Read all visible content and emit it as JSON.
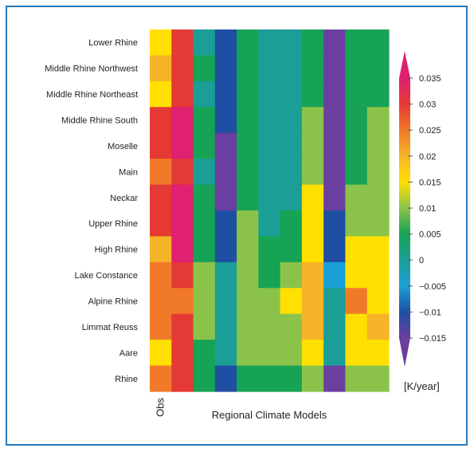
{
  "chart_data": {
    "type": "heatmap",
    "title": "",
    "xlabel": "Regional Climate Models",
    "first_column_label": "Obs",
    "rows": [
      "Lower Rhine",
      "Middle Rhine Northwest",
      "Middle Rhine Northeast",
      "Middle Rhine South",
      "Moselle",
      "Main",
      "Neckar",
      "Upper Rhine",
      "High Rhine",
      "Lake Constance",
      "Alpine Rhine",
      "Limmat Reuss",
      "Aare",
      "Rhine"
    ],
    "n_columns": 11,
    "values": [
      [
        0.02,
        0.03,
        0.003,
        -0.01,
        0.008,
        0.007,
        0.006,
        0.008,
        -0.013,
        0.008,
        0.008
      ],
      [
        0.022,
        0.03,
        0.008,
        -0.01,
        0.008,
        0.007,
        0.006,
        0.008,
        -0.013,
        0.008,
        0.008
      ],
      [
        0.02,
        0.03,
        0.003,
        -0.01,
        0.008,
        0.007,
        0.006,
        0.008,
        -0.013,
        0.008,
        0.008
      ],
      [
        0.03,
        0.035,
        0.008,
        -0.01,
        0.008,
        0.005,
        0.005,
        0.014,
        -0.013,
        0.008,
        0.014
      ],
      [
        0.03,
        0.035,
        0.008,
        -0.014,
        0.008,
        0.005,
        0.005,
        0.014,
        -0.013,
        0.008,
        0.014
      ],
      [
        0.025,
        0.03,
        0.003,
        -0.014,
        0.008,
        0.0,
        0.005,
        0.014,
        -0.015,
        0.008,
        0.014
      ],
      [
        0.03,
        0.035,
        0.008,
        -0.014,
        0.008,
        0.005,
        0.005,
        0.018,
        -0.013,
        0.014,
        0.014
      ],
      [
        0.03,
        0.035,
        0.008,
        -0.01,
        0.014,
        0.005,
        0.008,
        0.018,
        -0.01,
        0.014,
        0.014
      ],
      [
        0.022,
        0.035,
        0.008,
        -0.01,
        0.014,
        0.008,
        0.008,
        0.018,
        -0.01,
        0.02,
        0.02
      ],
      [
        0.025,
        0.03,
        0.014,
        0.0,
        0.014,
        0.008,
        0.014,
        0.022,
        -0.005,
        0.02,
        0.02
      ],
      [
        0.025,
        0.025,
        0.014,
        0.0,
        0.014,
        0.014,
        0.02,
        0.022,
        0.003,
        0.025,
        0.02
      ],
      [
        0.025,
        0.03,
        0.014,
        0.0,
        0.014,
        0.014,
        0.014,
        0.022,
        0.003,
        0.02,
        0.022
      ],
      [
        0.02,
        0.03,
        0.008,
        0.0,
        0.014,
        0.014,
        0.014,
        0.02,
        0.0,
        0.02,
        0.02
      ],
      [
        0.025,
        0.03,
        0.008,
        -0.01,
        0.008,
        0.008,
        0.008,
        0.014,
        -0.015,
        0.014,
        0.014
      ]
    ],
    "colorbar": {
      "ticks": [
        0.035,
        0.03,
        0.025,
        0.02,
        0.015,
        0.01,
        0.005,
        0,
        -0.005,
        -0.01,
        -0.015
      ],
      "tick_labels": [
        "0.035",
        "0.03",
        "0.025",
        "0.02",
        "0.015",
        "0.01",
        "0.005",
        "0",
        "−0.005",
        "−0.01",
        "−0.015"
      ],
      "unit": "[K/year]",
      "colors": [
        "#6b3fa0",
        "#1f4fa3",
        "#1aa0d6",
        "#1a9e95",
        "#17a355",
        "#8bc34a",
        "#ffe000",
        "#f5b427",
        "#f07a2a",
        "#e53935",
        "#e02070"
      ]
    }
  }
}
